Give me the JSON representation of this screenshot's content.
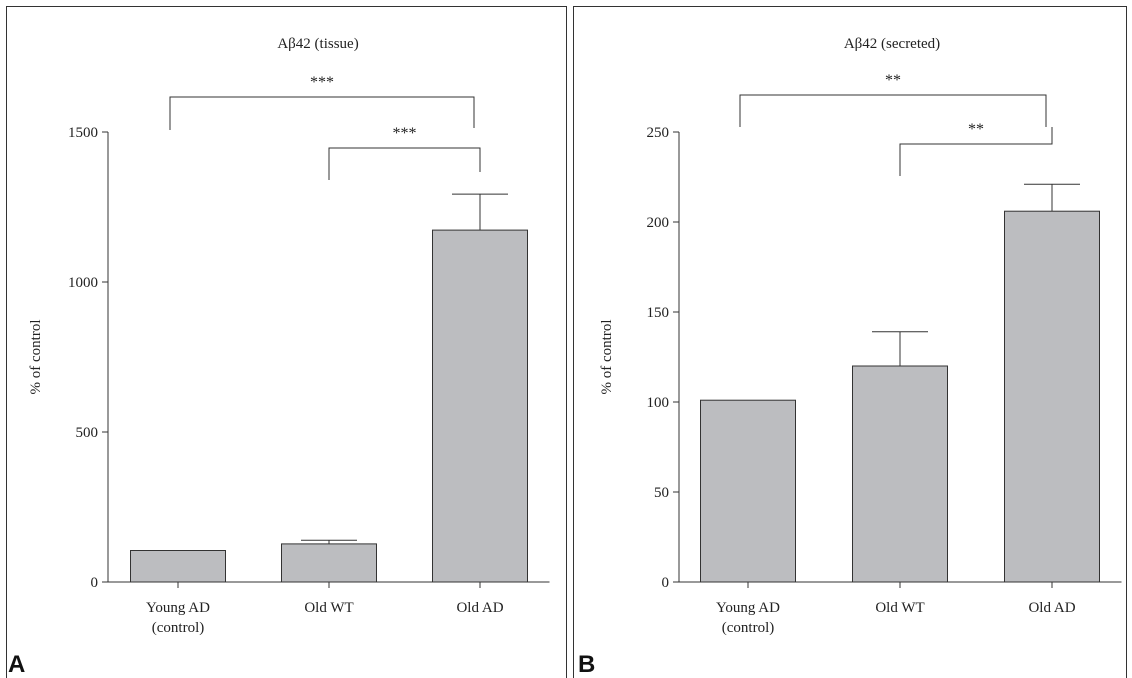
{
  "colors": {
    "bar_fill": "#bcbdc0",
    "bar_stroke": "#333333",
    "axis": "#333333",
    "text": "#222222"
  },
  "chart_data": [
    {
      "panel_label": "A",
      "type": "bar",
      "title": "Aβ42 (tissue)",
      "xlabel": "",
      "ylabel": "% of control",
      "ylim": [
        0,
        1500
      ],
      "yticks": [
        0,
        500,
        1000,
        1500
      ],
      "categories": [
        [
          "Young AD",
          "(control)"
        ],
        [
          "Old WT"
        ],
        [
          "Old AD"
        ]
      ],
      "values": [
        105,
        127,
        1173
      ],
      "errors": [
        0,
        12,
        120
      ],
      "significance": [
        {
          "from": 0,
          "to": 2,
          "label": "***"
        },
        {
          "from": 1,
          "to": 2,
          "label": "***"
        }
      ]
    },
    {
      "panel_label": "B",
      "type": "bar",
      "title": "Aβ42 (secreted)",
      "xlabel": "",
      "ylabel": "% of control",
      "ylim": [
        0,
        250
      ],
      "yticks": [
        0,
        50,
        100,
        150,
        200,
        250
      ],
      "categories": [
        [
          "Young AD",
          "(control)"
        ],
        [
          "Old WT"
        ],
        [
          "Old AD"
        ]
      ],
      "values": [
        101,
        120,
        206
      ],
      "errors": [
        0,
        19,
        15
      ],
      "significance": [
        {
          "from": 0,
          "to": 2,
          "label": "**"
        },
        {
          "from": 1,
          "to": 2,
          "label": "**"
        }
      ]
    }
  ]
}
